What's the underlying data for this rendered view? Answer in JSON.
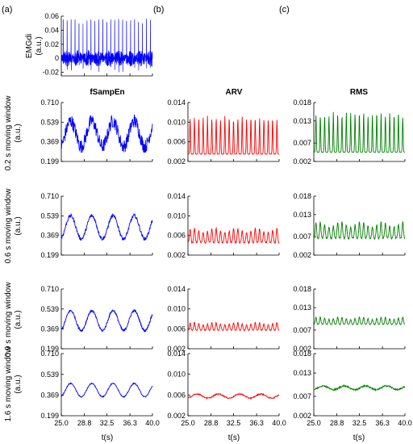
{
  "panel_labels": [
    "(a)",
    "(b)",
    "(c)"
  ],
  "colors": {
    "a": "#0000ff",
    "b": "#ff0000",
    "c": "#008000"
  },
  "emg": {
    "ylabel_line1": "EMGdi",
    "ylabel_line2": "(a.u.)",
    "ylim": [
      -0.025,
      0.06
    ],
    "yticks": [
      "0.06",
      "0.04",
      "0.02",
      "0",
      "-0.02"
    ],
    "ytick_values": [
      0.06,
      0.04,
      0.02,
      0,
      -0.02
    ]
  },
  "column_titles": [
    "fSampEn",
    "ARV",
    "RMS"
  ],
  "row_ylabels": [
    "0.2 s moving window",
    "0.6 s moving window",
    "0.9 s moving window",
    "1.6 s moving window"
  ],
  "row_yunit": "(a.u.)",
  "xlabel": "t(s)",
  "xticks": [
    "25.0",
    "28.8",
    "32.5",
    "36.3",
    "40.0"
  ],
  "xtick_values": [
    25.0,
    28.8,
    32.5,
    36.3,
    40.0
  ],
  "chart_data": [
    {
      "type": "line",
      "column": "a",
      "series": [
        {
          "name": "",
          "values": []
        }
      ],
      "x_range": [
        25.0,
        40.0
      ],
      "ylim": [
        -0.025,
        0.06
      ],
      "description_free": true,
      "signal": {
        "kind": "emg",
        "spike_amplitude": 0.057,
        "noise_amplitude": 0.012,
        "spike_count": 23
      }
    },
    {
      "type": "line",
      "column": "a",
      "row": 0,
      "ylim": [
        0.199,
        0.71
      ],
      "yticks": [
        "0.710",
        "0.539",
        "0.369",
        "0.199"
      ],
      "ytick_values": [
        0.71,
        0.539,
        0.369,
        0.199
      ],
      "signal": {
        "kind": "slow",
        "mean": 0.44,
        "amplitude": 0.11,
        "cycles": 4.3,
        "noise": 0.06
      }
    },
    {
      "type": "line",
      "column": "b",
      "row": 0,
      "ylim": [
        0.002,
        0.014
      ],
      "yticks": [
        "0.014",
        "0.010",
        "0.006",
        "0.002"
      ],
      "ytick_values": [
        0.014,
        0.01,
        0.006,
        0.002
      ],
      "signal": {
        "kind": "spikes",
        "base": 0.0035,
        "peak": 0.0115,
        "count": 21
      }
    },
    {
      "type": "line",
      "column": "c",
      "row": 0,
      "ylim": [
        0.002,
        0.018
      ],
      "yticks": [
        "0.018",
        "0.013",
        "0.007",
        "0.002"
      ],
      "ytick_values": [
        0.018,
        0.013,
        0.007,
        0.002
      ],
      "signal": {
        "kind": "spikes",
        "base": 0.0045,
        "peak": 0.0155,
        "count": 21
      }
    },
    {
      "type": "line",
      "column": "a",
      "row": 1,
      "ylim": [
        0.199,
        0.71
      ],
      "yticks": [
        "0.710",
        "0.539",
        "0.369",
        "0.199"
      ],
      "ytick_values": [
        0.71,
        0.539,
        0.369,
        0.199
      ],
      "signal": {
        "kind": "slow",
        "mean": 0.44,
        "amplitude": 0.1,
        "cycles": 4.3,
        "noise": 0.015
      }
    },
    {
      "type": "line",
      "column": "b",
      "row": 1,
      "ylim": [
        0.002,
        0.014
      ],
      "yticks": [
        "0.014",
        "0.010",
        "0.006",
        "0.002"
      ],
      "ytick_values": [
        0.014,
        0.01,
        0.006,
        0.002
      ],
      "signal": {
        "kind": "bumps",
        "base": 0.0045,
        "peak": 0.0075,
        "count": 21
      }
    },
    {
      "type": "line",
      "column": "c",
      "row": 1,
      "ylim": [
        0.002,
        0.018
      ],
      "yticks": [
        "0.018",
        "0.013",
        "0.007",
        "0.002"
      ],
      "ytick_values": [
        0.018,
        0.013,
        0.007,
        0.002
      ],
      "signal": {
        "kind": "bumps",
        "base": 0.0065,
        "peak": 0.011,
        "count": 21
      }
    },
    {
      "type": "line",
      "column": "a",
      "row": 2,
      "ylim": [
        0.199,
        0.71
      ],
      "yticks": [
        "0.710",
        "0.539",
        "0.369",
        "0.199"
      ],
      "ytick_values": [
        0.71,
        0.539,
        0.369,
        0.199
      ],
      "signal": {
        "kind": "slow",
        "mean": 0.44,
        "amplitude": 0.085,
        "cycles": 4.3,
        "noise": 0.01
      }
    },
    {
      "type": "line",
      "column": "b",
      "row": 2,
      "ylim": [
        0.002,
        0.014
      ],
      "yticks": [
        "0.014",
        "0.010",
        "0.006",
        "0.002"
      ],
      "ytick_values": [
        0.014,
        0.01,
        0.006,
        0.002
      ],
      "signal": {
        "kind": "bumps",
        "base": 0.0057,
        "peak": 0.0073,
        "count": 21
      }
    },
    {
      "type": "line",
      "column": "c",
      "row": 2,
      "ylim": [
        0.002,
        0.018
      ],
      "yticks": [
        "0.018",
        "0.013",
        "0.007",
        "0.002"
      ],
      "ytick_values": [
        0.018,
        0.013,
        0.007,
        0.002
      ],
      "signal": {
        "kind": "bumps",
        "base": 0.0085,
        "peak": 0.0105,
        "count": 21
      }
    },
    {
      "type": "line",
      "column": "a",
      "row": 3,
      "ylim": [
        0.199,
        0.71
      ],
      "yticks": [
        "0.710",
        "0.539",
        "0.369",
        "0.199"
      ],
      "ytick_values": [
        0.71,
        0.539,
        0.369,
        0.199
      ],
      "signal": {
        "kind": "slow",
        "mean": 0.41,
        "amplitude": 0.055,
        "cycles": 4.3,
        "noise": 0.004
      }
    },
    {
      "type": "line",
      "column": "b",
      "row": 3,
      "ylim": [
        0.002,
        0.014
      ],
      "yticks": [
        "0.014",
        "0.010",
        "0.006",
        "0.002"
      ],
      "ytick_values": [
        0.014,
        0.01,
        0.006,
        0.002
      ],
      "signal": {
        "kind": "slow",
        "mean": 0.0058,
        "amplitude": 0.0004,
        "cycles": 4.3,
        "noise": 0.0001
      }
    },
    {
      "type": "line",
      "column": "c",
      "row": 3,
      "ylim": [
        0.002,
        0.018
      ],
      "yticks": [
        "0.018",
        "0.013",
        "0.007",
        "0.002"
      ],
      "ytick_values": [
        0.018,
        0.013,
        0.007,
        0.002
      ],
      "signal": {
        "kind": "slow",
        "mean": 0.0092,
        "amplitude": 0.0005,
        "cycles": 4.3,
        "noise": 0.0002
      }
    }
  ]
}
